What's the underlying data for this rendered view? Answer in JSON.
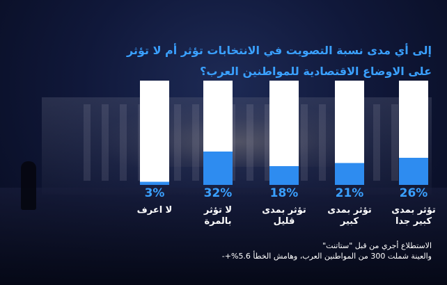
{
  "title": "إلى أي مدى نسبة التصويت في الانتخابات تؤثر أم لا تؤثر على الاوضاع الاقتصادية للمواطنين العرب؟",
  "note": {
    "line1": "الاستطلاع أجري من قبل \"ستاتنت\"",
    "line2": "والعينة شملت 300 من المواطنين العرب، وهامش الخطأ 5.6%+-"
  },
  "colors": {
    "accent": "#3aa0ff",
    "bar_fill": "#2e8cf0",
    "bar_bg": "#ffffff"
  },
  "chart_data": {
    "type": "bar",
    "categories": [
      "لا اعرف",
      "لا تؤثر بالمرة",
      "تؤثر بمدى قليل",
      "تؤثر بمدى كبير",
      "تؤثر بمدى كبير جدا"
    ],
    "values": [
      3,
      32,
      18,
      21,
      26
    ],
    "value_labels": [
      "3%",
      "32%",
      "18%",
      "21%",
      "26%"
    ],
    "ylim": [
      0,
      100
    ]
  }
}
